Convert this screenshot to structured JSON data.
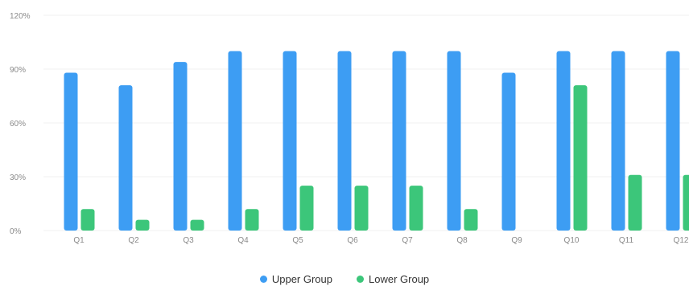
{
  "chart_data": {
    "type": "bar",
    "categories": [
      "Q1",
      "Q2",
      "Q3",
      "Q4",
      "Q5",
      "Q6",
      "Q7",
      "Q8",
      "Q9",
      "Q10",
      "Q11",
      "Q12"
    ],
    "series": [
      {
        "name": "Upper Group",
        "color": "#3d9df3",
        "values": [
          88,
          81,
          94,
          100,
          100,
          100,
          100,
          100,
          88,
          100,
          100,
          100
        ]
      },
      {
        "name": "Lower Group",
        "color": "#3cc67a",
        "values": [
          12,
          6,
          6,
          12,
          25,
          25,
          25,
          12,
          0,
          81,
          31,
          31
        ]
      }
    ],
    "yticks": [
      "0%",
      "30%",
      "60%",
      "90%",
      "120%"
    ],
    "ylim": [
      0,
      120
    ],
    "grid": true,
    "legend_position": "bottom"
  }
}
